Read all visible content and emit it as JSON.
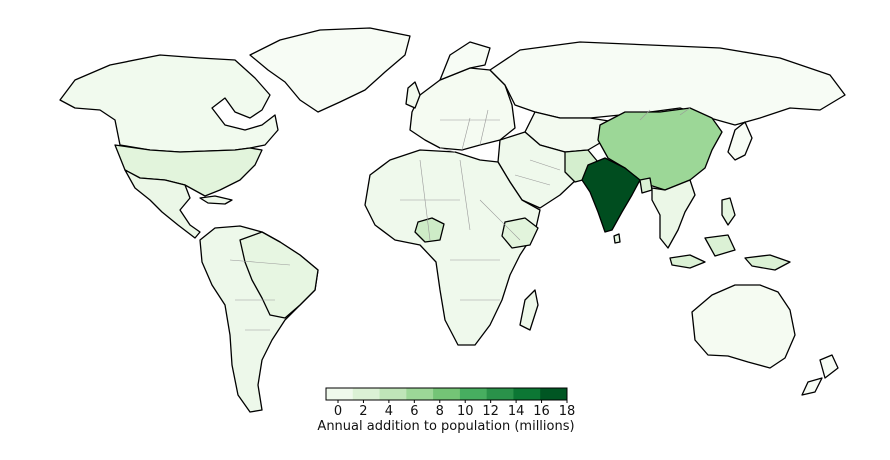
{
  "colorbar": {
    "label": "Annual addition to population (millions)",
    "ticks": [
      "0",
      "2",
      "4",
      "6",
      "8",
      "10",
      "12",
      "14",
      "16",
      "18"
    ],
    "min": 0,
    "max": 18,
    "colors": [
      "#f7fcf5",
      "#e5f5e0",
      "#c7e9c0",
      "#a1d99b",
      "#74c476",
      "#41ab5d",
      "#238b45",
      "#006d2c",
      "#00441b"
    ]
  },
  "regions": {
    "north-america": {
      "value": 0.8
    },
    "greenland": {
      "value": 0
    },
    "united-states": {
      "value": 2.5
    },
    "mexico-central-america": {
      "value": 1.5
    },
    "south-america": {
      "value": 1.2
    },
    "brazil": {
      "value": 2.0
    },
    "europe": {
      "value": 0.3
    },
    "russia": {
      "value": 0
    },
    "middle-east": {
      "value": 1.0
    },
    "africa": {
      "value": 1.0
    },
    "nigeria": {
      "value": 4.0
    },
    "ethiopia": {
      "value": 2.5
    },
    "china": {
      "value": 7.0
    },
    "india": {
      "value": 17.5
    },
    "pakistan": {
      "value": 3.5
    },
    "bangladesh": {
      "value": 3.0
    },
    "southeast-asia": {
      "value": 1.5
    },
    "indonesia": {
      "value": 3.0
    },
    "australia": {
      "value": 0.3
    },
    "japan": {
      "value": 0
    },
    "central-asia": {
      "value": 0.5
    }
  }
}
